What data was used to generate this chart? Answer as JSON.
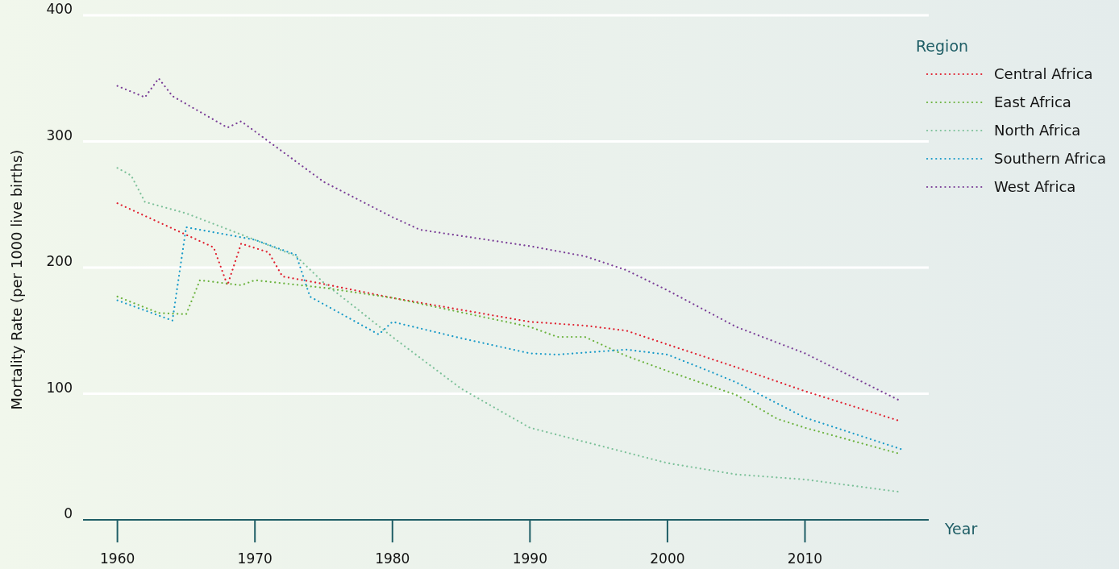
{
  "chart_data": {
    "type": "line",
    "xlabel": "Year",
    "ylabel": "Mortality Rate (per 1000 live births)",
    "legend_title": "Region",
    "xlim": [
      1957.5,
      2019
    ],
    "xticks": [
      1960,
      1970,
      1980,
      1990,
      2000,
      2010
    ],
    "ylim": [
      0,
      400
    ],
    "yticks": [
      0,
      100,
      200,
      300,
      400
    ],
    "grid": "y",
    "legend": "top right",
    "line_style": "dotted",
    "marker": "none",
    "series": [
      {
        "name": "Central Africa",
        "color": "#e0202f",
        "x": [
          1960,
          1967,
          1968,
          1969,
          1971,
          1972,
          1975,
          1980,
          1990,
          1994,
          1997,
          2000,
          2005,
          2010,
          2017
        ],
        "values": [
          251,
          216,
          186,
          219,
          212,
          193,
          187,
          176,
          157,
          154,
          150,
          139,
          121,
          102,
          78
        ]
      },
      {
        "name": "East Africa",
        "color": "#6cb33f",
        "x": [
          1960,
          1963,
          1965,
          1966,
          1969,
          1970,
          1975,
          1980,
          1990,
          1992,
          1994,
          1997,
          2000,
          2005,
          2008,
          2010,
          2017
        ],
        "values": [
          177,
          164,
          163,
          190,
          186,
          190,
          184,
          176,
          153,
          145,
          145,
          130,
          118,
          99,
          80,
          73,
          52
        ]
      },
      {
        "name": "North Africa",
        "color": "#7dc19a",
        "x": [
          1960,
          1961,
          1962,
          1965,
          1970,
          1973,
          1975,
          1977,
          1980,
          1985,
          1990,
          1995,
          2000,
          2005,
          2010,
          2017
        ],
        "values": [
          279,
          273,
          252,
          243,
          222,
          209,
          188,
          171,
          145,
          104,
          73,
          59,
          45,
          36,
          32,
          22
        ]
      },
      {
        "name": "Southern Africa",
        "color": "#1a9bc9",
        "x": [
          1960,
          1964,
          1965,
          1970,
          1973,
          1974,
          1979,
          1980,
          1985,
          1990,
          1992,
          1997,
          2000,
          2003,
          2005,
          2010,
          2017
        ],
        "values": [
          174,
          158,
          232,
          222,
          210,
          177,
          147,
          157,
          144,
          132,
          131,
          135,
          131,
          118,
          109,
          81,
          56
        ]
      },
      {
        "name": "West Africa",
        "color": "#7b3f98",
        "x": [
          1960,
          1962,
          1963,
          1964,
          1968,
          1969,
          1975,
          1980,
          1982,
          1990,
          1994,
          1997,
          2000,
          2005,
          2010,
          2017
        ],
        "values": [
          344,
          335,
          350,
          336,
          311,
          316,
          268,
          240,
          230,
          217,
          209,
          198,
          182,
          153,
          132,
          94
        ]
      }
    ]
  }
}
